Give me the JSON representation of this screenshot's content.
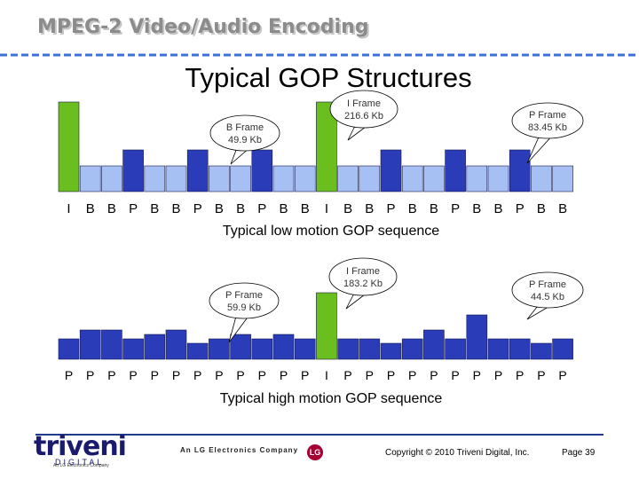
{
  "header": {
    "title": "MPEG-2 Video/Audio Encoding",
    "subtitle": "Typical GOP Structures"
  },
  "colors": {
    "i_frame": "#6abe1e",
    "p_frame": "#2a3cb8",
    "b_frame": "#a6c0f4",
    "rule_blue": "#1f3b8c",
    "dash_blue": "#3d6fd8"
  },
  "chart_data": [
    {
      "type": "bar",
      "title": "Typical low motion GOP sequence",
      "categories": [
        "I",
        "B",
        "B",
        "P",
        "B",
        "B",
        "P",
        "B",
        "B",
        "P",
        "B",
        "B",
        "I",
        "B",
        "B",
        "P",
        "B",
        "B",
        "P",
        "B",
        "B",
        "P",
        "B",
        "B"
      ],
      "values": [
        101,
        29,
        29,
        47,
        29,
        29,
        47,
        29,
        29,
        47,
        29,
        29,
        101,
        29,
        29,
        47,
        29,
        29,
        47,
        29,
        29,
        47,
        29,
        29
      ],
      "unit": "relative size",
      "callouts": [
        {
          "text": "B Frame\n49.9 Kb",
          "bar_index": 1
        },
        {
          "text": "I Frame\n216.6 Kb",
          "bar_index": 12
        },
        {
          "text": "P Frame\n83.45 Kb",
          "bar_index": 21
        }
      ]
    },
    {
      "type": "bar",
      "title": "Typical high motion GOP sequence",
      "categories": [
        "P",
        "P",
        "P",
        "P",
        "P",
        "P",
        "P",
        "P",
        "P",
        "P",
        "P",
        "P",
        "I",
        "P",
        "P",
        "P",
        "P",
        "P",
        "P",
        "P",
        "P",
        "P",
        "P",
        "P"
      ],
      "values": [
        23,
        33,
        33,
        23,
        28,
        33,
        18,
        23,
        28,
        23,
        28,
        23,
        75,
        23,
        23,
        18,
        23,
        33,
        23,
        50,
        23,
        23,
        18,
        23
      ],
      "unit": "relative size",
      "callouts": [
        {
          "text": "P Frame\n59.9 Kb",
          "bar_index": 7
        },
        {
          "text": "I Frame\n183.2 Kb",
          "bar_index": 12
        },
        {
          "text": "P Frame\n44.5 Kb",
          "bar_index": 21
        }
      ]
    }
  ],
  "footer": {
    "logo_word": "triveni",
    "logo_sub": "DIGITAL",
    "logo_tagline": "An LG Electronics Company",
    "lg_company_text": "An LG Electronics Company",
    "lg_mark": "LG",
    "copyright": "Copyright © 2010 Triveni Digital, Inc.",
    "page": "Page 39"
  }
}
